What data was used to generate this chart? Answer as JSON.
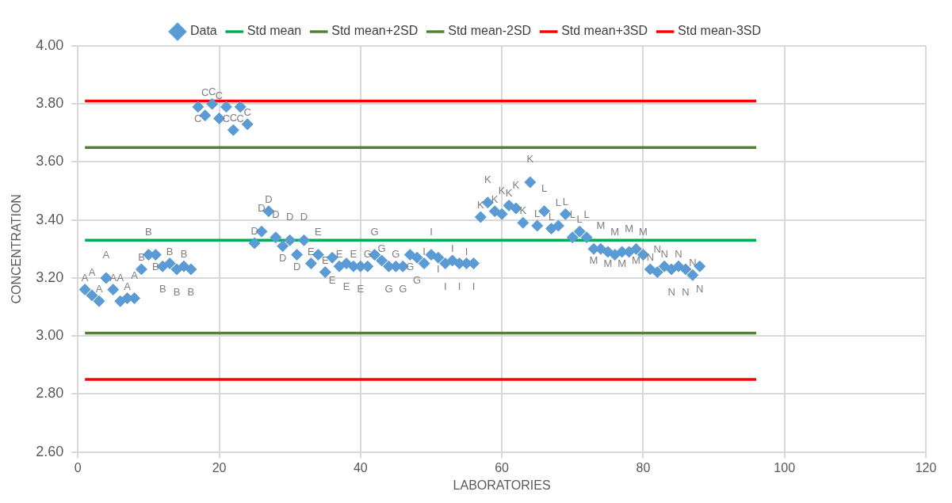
{
  "chart_data": {
    "type": "scatter",
    "xlabel": "LABORATORIES",
    "ylabel": "CONCENTRATION",
    "xlim": [
      0,
      120
    ],
    "xticks": [
      0,
      20,
      40,
      60,
      80,
      100,
      120
    ],
    "ylim": [
      2.6,
      4.0
    ],
    "yticks": [
      {
        "value": 2.6,
        "label": "2.60"
      },
      {
        "value": 2.8,
        "label": "2.80"
      },
      {
        "value": 3.0,
        "label": "3.00"
      },
      {
        "value": 3.2,
        "label": "3.20"
      },
      {
        "value": 3.4,
        "label": "3.40"
      },
      {
        "value": 3.6,
        "label": "3.60"
      },
      {
        "value": 3.8,
        "label": "3.80"
      },
      {
        "value": 4.0,
        "label": "4.00"
      }
    ],
    "grid": true,
    "legend": "top",
    "series": [
      {
        "name": "Data",
        "color": "#5b9bd5",
        "marker": "diamond",
        "x": [
          1,
          2,
          3,
          4,
          5,
          6,
          7,
          8,
          9,
          10,
          11,
          12,
          13,
          14,
          15,
          16,
          17,
          18,
          19,
          20,
          21,
          22,
          23,
          24,
          25,
          26,
          27,
          28,
          29,
          30,
          31,
          32,
          33,
          34,
          35,
          36,
          37,
          38,
          39,
          40,
          41,
          42,
          43,
          44,
          45,
          46,
          47,
          48,
          49,
          50,
          51,
          52,
          53,
          54,
          55,
          56,
          57,
          58,
          59,
          60,
          61,
          62,
          63,
          64,
          65,
          66,
          67,
          68,
          69,
          70,
          71,
          72,
          73,
          74,
          75,
          76,
          77,
          78,
          79,
          80,
          81,
          82,
          83,
          84,
          85,
          86,
          87,
          88
        ],
        "values": [
          3.16,
          3.14,
          3.12,
          3.2,
          3.16,
          3.12,
          3.13,
          3.13,
          3.23,
          3.28,
          3.28,
          3.24,
          3.25,
          3.23,
          3.24,
          3.23,
          3.79,
          3.76,
          3.8,
          3.75,
          3.79,
          3.71,
          3.79,
          3.73,
          3.32,
          3.36,
          3.43,
          3.34,
          3.31,
          3.33,
          3.28,
          3.33,
          3.25,
          3.28,
          3.22,
          3.27,
          3.24,
          3.25,
          3.24,
          3.24,
          3.24,
          3.28,
          3.26,
          3.24,
          3.24,
          3.24,
          3.28,
          3.27,
          3.25,
          3.28,
          3.27,
          3.25,
          3.26,
          3.25,
          3.25,
          3.25,
          3.41,
          3.46,
          3.43,
          3.42,
          3.45,
          3.44,
          3.39,
          3.53,
          3.38,
          3.43,
          3.37,
          3.38,
          3.42,
          3.34,
          3.36,
          3.34,
          3.3,
          3.3,
          3.29,
          3.28,
          3.29,
          3.29,
          3.3,
          3.28,
          3.23,
          3.22,
          3.24,
          3.23,
          3.24,
          3.23,
          3.21,
          3.24
        ],
        "value_labels": [
          "A",
          "A",
          "A",
          "A",
          "A",
          "A",
          "A",
          "A",
          "B",
          "B",
          "B",
          "B",
          "B",
          "B",
          "B",
          "B",
          "C",
          "C",
          "C",
          "C",
          "C",
          "C",
          "C",
          "C",
          "D",
          "D",
          "D",
          "D",
          "D",
          "D",
          "D",
          "D",
          "E",
          "E",
          "E",
          "E",
          "E",
          "E",
          "E",
          "E",
          "G",
          "G",
          "G",
          "G",
          "G",
          "G",
          "G",
          "G",
          "I",
          "I",
          "I",
          "I",
          "I",
          "I",
          "I",
          "I",
          "K",
          "K",
          "K",
          "K",
          "K",
          "K",
          "K",
          "K",
          "L",
          "L",
          "L",
          "L",
          "L",
          "L",
          "L",
          "L",
          "M",
          "M",
          "M",
          "M",
          "M",
          "M",
          "M",
          "M",
          "N",
          "N",
          "N",
          "N",
          "N",
          "N",
          "N",
          "N"
        ]
      },
      {
        "name": "Std mean",
        "type": "line",
        "color": "#00b050",
        "x": [
          1,
          96
        ],
        "values": [
          3.33,
          3.33
        ]
      },
      {
        "name": "Std mean+2SD",
        "type": "line",
        "color": "#548235",
        "x": [
          1,
          96
        ],
        "values": [
          3.65,
          3.65
        ]
      },
      {
        "name": "Std mean-2SD",
        "type": "line",
        "color": "#548235",
        "x": [
          1,
          96
        ],
        "values": [
          3.01,
          3.01
        ]
      },
      {
        "name": "Std mean+3SD",
        "type": "line",
        "color": "#ff0000",
        "x": [
          1,
          96
        ],
        "values": [
          3.81,
          3.81
        ]
      },
      {
        "name": "Std mean-3SD",
        "type": "line",
        "color": "#ff0000",
        "x": [
          1,
          96
        ],
        "values": [
          2.85,
          2.85
        ]
      }
    ]
  }
}
